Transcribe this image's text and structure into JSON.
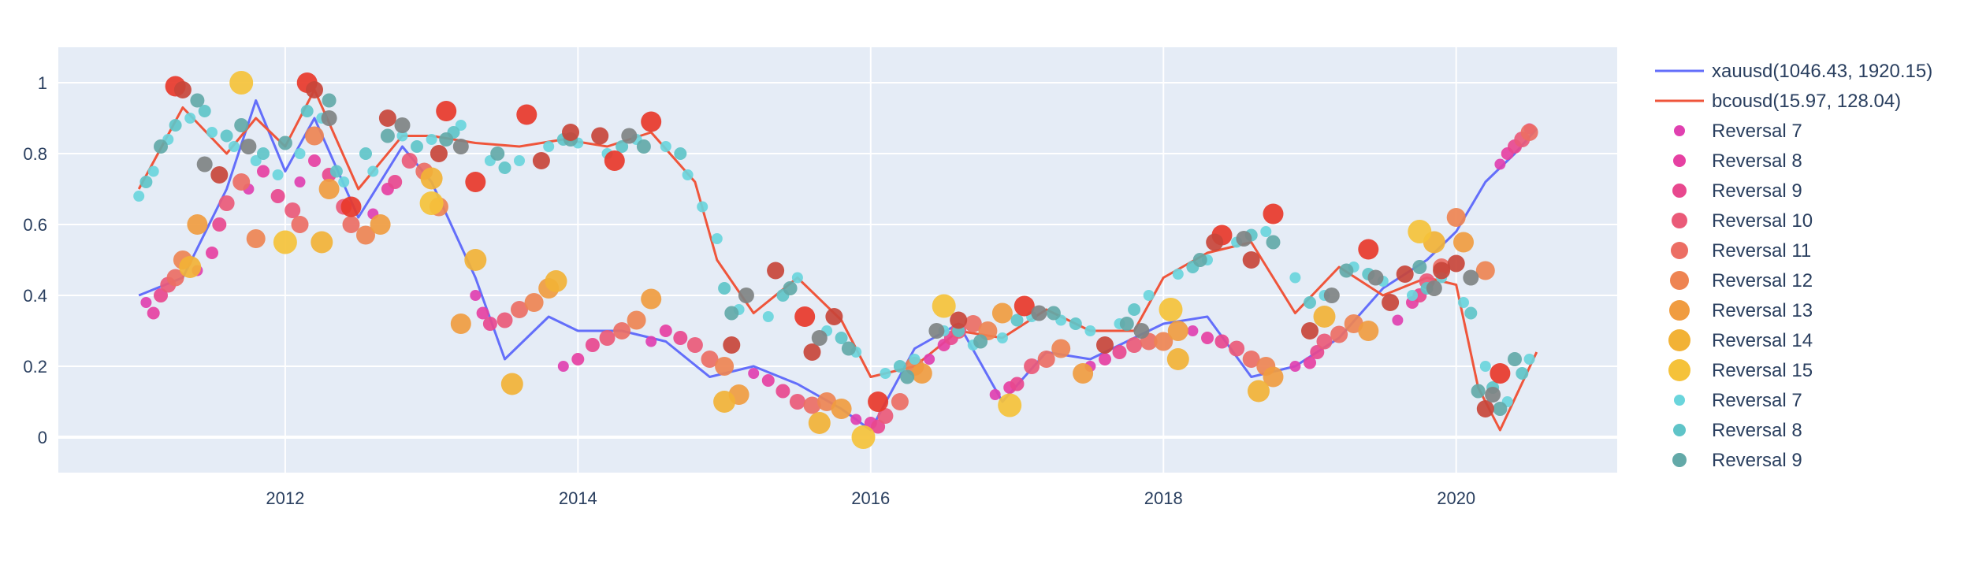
{
  "chart_data": {
    "type": "scatter",
    "title": "",
    "xlabel": "",
    "ylabel": "",
    "xlim": [
      2010.45,
      2021.1
    ],
    "ylim": [
      -0.1,
      1.1
    ],
    "grid": true,
    "legend_position": "right",
    "colors": {
      "plot_bg": "#e5ecf6",
      "grid": "#ffffff",
      "text": "#2a3f5f",
      "xauusd": "#636efa",
      "bcousd": "#ef553b"
    },
    "xticks": [
      {
        "value": 2012,
        "label": "2012"
      },
      {
        "value": 2014,
        "label": "2014"
      },
      {
        "value": 2016,
        "label": "2016"
      },
      {
        "value": 2018,
        "label": "2018"
      },
      {
        "value": 2020,
        "label": "2020"
      }
    ],
    "yticks": [
      {
        "value": 0,
        "label": "0"
      },
      {
        "value": 0.2,
        "label": "0.2"
      },
      {
        "value": 0.4,
        "label": "0.4"
      },
      {
        "value": 0.6,
        "label": "0.6"
      },
      {
        "value": 0.8,
        "label": "0.8"
      },
      {
        "value": 1,
        "label": "1"
      }
    ],
    "series": [
      {
        "name": "xauusd(1046.43, 1920.15)",
        "kind": "line",
        "color": "#636efa",
        "x": [
          2011.0,
          2011.3,
          2011.6,
          2011.8,
          2012.0,
          2012.2,
          2012.5,
          2012.8,
          2013.0,
          2013.3,
          2013.5,
          2013.8,
          2014.0,
          2014.3,
          2014.6,
          2014.9,
          2015.2,
          2015.5,
          2015.8,
          2016.0,
          2016.3,
          2016.6,
          2016.9,
          2017.2,
          2017.5,
          2017.8,
          2018.0,
          2018.3,
          2018.6,
          2018.9,
          2019.2,
          2019.5,
          2019.8,
          2020.0,
          2020.2,
          2020.4,
          2020.55
        ],
        "values": [
          0.4,
          0.45,
          0.7,
          0.95,
          0.75,
          0.9,
          0.62,
          0.82,
          0.72,
          0.45,
          0.22,
          0.34,
          0.3,
          0.3,
          0.27,
          0.17,
          0.2,
          0.15,
          0.08,
          0.02,
          0.25,
          0.32,
          0.1,
          0.24,
          0.22,
          0.28,
          0.32,
          0.34,
          0.17,
          0.2,
          0.28,
          0.42,
          0.5,
          0.58,
          0.72,
          0.8,
          0.87
        ]
      },
      {
        "name": "bcousd(15.97, 128.04)",
        "kind": "line",
        "color": "#ef553b",
        "x": [
          2011.0,
          2011.3,
          2011.6,
          2011.8,
          2012.0,
          2012.2,
          2012.5,
          2012.8,
          2013.0,
          2013.3,
          2013.6,
          2013.9,
          2014.2,
          2014.5,
          2014.8,
          2014.95,
          2015.2,
          2015.5,
          2015.8,
          2016.0,
          2016.3,
          2016.6,
          2016.9,
          2017.2,
          2017.5,
          2017.8,
          2018.0,
          2018.3,
          2018.6,
          2018.9,
          2019.2,
          2019.5,
          2019.8,
          2020.0,
          2020.15,
          2020.3,
          2020.55
        ],
        "values": [
          0.7,
          0.93,
          0.8,
          0.9,
          0.82,
          0.98,
          0.7,
          0.85,
          0.85,
          0.83,
          0.82,
          0.84,
          0.82,
          0.86,
          0.72,
          0.5,
          0.35,
          0.45,
          0.33,
          0.17,
          0.2,
          0.3,
          0.28,
          0.36,
          0.3,
          0.3,
          0.45,
          0.52,
          0.55,
          0.35,
          0.48,
          0.4,
          0.45,
          0.43,
          0.14,
          0.02,
          0.24
        ]
      },
      {
        "name": "Reversal 7",
        "color": "#e040b0",
        "size": 7,
        "x": [
          2011.05,
          2011.4,
          2011.75,
          2012.1,
          2012.6,
          2013.3,
          2013.9,
          2014.5,
          2015.2,
          2015.9,
          2016.4,
          2016.85,
          2017.5,
          2018.2,
          2018.9,
          2019.6,
          2020.3,
          2020.5
        ],
        "values": [
          0.38,
          0.47,
          0.7,
          0.72,
          0.63,
          0.4,
          0.2,
          0.27,
          0.18,
          0.05,
          0.22,
          0.12,
          0.2,
          0.3,
          0.2,
          0.33,
          0.77,
          0.87
        ]
      },
      {
        "name": "Reversal 8",
        "color": "#e640a2",
        "size": 8,
        "x": [
          2011.1,
          2011.5,
          2011.85,
          2012.2,
          2012.7,
          2013.35,
          2014.0,
          2014.6,
          2015.3,
          2016.0,
          2016.5,
          2016.95,
          2017.6,
          2018.3,
          2019.0,
          2019.7,
          2020.35
        ],
        "values": [
          0.35,
          0.52,
          0.75,
          0.78,
          0.7,
          0.35,
          0.22,
          0.3,
          0.16,
          0.04,
          0.26,
          0.14,
          0.22,
          0.28,
          0.21,
          0.38,
          0.8
        ]
      },
      {
        "name": "Reversal 9",
        "color": "#e8488e",
        "size": 9,
        "x": [
          2011.15,
          2011.55,
          2011.95,
          2012.3,
          2012.75,
          2013.4,
          2014.1,
          2014.7,
          2015.4,
          2016.05,
          2016.55,
          2017.0,
          2017.7,
          2018.4,
          2019.05,
          2019.75,
          2020.4
        ],
        "values": [
          0.4,
          0.6,
          0.68,
          0.74,
          0.72,
          0.32,
          0.26,
          0.28,
          0.13,
          0.03,
          0.28,
          0.15,
          0.24,
          0.27,
          0.24,
          0.4,
          0.82
        ]
      },
      {
        "name": "Reversal 10",
        "color": "#ea5a78",
        "size": 10,
        "x": [
          2011.2,
          2011.6,
          2012.05,
          2012.4,
          2012.85,
          2013.5,
          2014.2,
          2014.8,
          2015.5,
          2016.1,
          2016.6,
          2017.1,
          2017.8,
          2018.5,
          2019.1,
          2019.8,
          2020.45
        ],
        "values": [
          0.43,
          0.66,
          0.64,
          0.65,
          0.78,
          0.33,
          0.28,
          0.26,
          0.1,
          0.06,
          0.3,
          0.2,
          0.26,
          0.25,
          0.27,
          0.44,
          0.84
        ]
      },
      {
        "name": "Reversal 11",
        "color": "#ec6e64",
        "size": 11,
        "x": [
          2011.25,
          2011.7,
          2012.1,
          2012.45,
          2012.95,
          2013.6,
          2014.3,
          2014.9,
          2015.6,
          2016.2,
          2016.7,
          2017.2,
          2017.9,
          2018.6,
          2019.2,
          2019.9,
          2020.5
        ],
        "values": [
          0.45,
          0.72,
          0.6,
          0.6,
          0.75,
          0.36,
          0.3,
          0.22,
          0.09,
          0.1,
          0.32,
          0.22,
          0.27,
          0.22,
          0.29,
          0.48,
          0.86
        ]
      },
      {
        "name": "Reversal 12",
        "color": "#ee8452",
        "size": 12,
        "x": [
          2011.3,
          2011.8,
          2012.2,
          2012.55,
          2013.05,
          2013.7,
          2014.4,
          2015.0,
          2015.7,
          2016.3,
          2016.8,
          2017.3,
          2018.0,
          2018.7,
          2019.3,
          2020.0,
          2020.2
        ],
        "values": [
          0.5,
          0.56,
          0.85,
          0.57,
          0.65,
          0.38,
          0.33,
          0.2,
          0.1,
          0.2,
          0.3,
          0.25,
          0.27,
          0.2,
          0.32,
          0.62,
          0.47
        ]
      },
      {
        "name": "Reversal 13",
        "color": "#f09c40",
        "size": 13,
        "x": [
          2011.4,
          2012.3,
          2012.65,
          2013.2,
          2013.8,
          2014.5,
          2015.1,
          2015.8,
          2016.35,
          2016.9,
          2017.45,
          2018.1,
          2018.75,
          2019.4,
          2020.05
        ],
        "values": [
          0.6,
          0.7,
          0.6,
          0.32,
          0.42,
          0.39,
          0.12,
          0.08,
          0.18,
          0.35,
          0.18,
          0.3,
          0.17,
          0.3,
          0.55
        ]
      },
      {
        "name": "Reversal 14",
        "color": "#f2b236",
        "size": 14,
        "x": [
          2011.35,
          2012.25,
          2013.0,
          2013.3,
          2013.55,
          2013.85,
          2015.0,
          2015.65,
          2018.1,
          2018.65,
          2019.1,
          2019.85
        ],
        "values": [
          0.48,
          0.55,
          0.73,
          0.5,
          0.15,
          0.44,
          0.1,
          0.04,
          0.22,
          0.13,
          0.34,
          0.55
        ]
      },
      {
        "name": "Reversal 15",
        "color": "#f5c23a",
        "size": 15,
        "x": [
          2011.7,
          2012.0,
          2013.0,
          2015.95,
          2016.5,
          2016.95,
          2018.05,
          2019.75
        ],
        "values": [
          1.0,
          0.55,
          0.66,
          0.0,
          0.37,
          0.09,
          0.36,
          0.58
        ]
      },
      {
        "name": "Reversal 7",
        "color": "#6ad5dc",
        "size": 7,
        "x": [
          2011.0,
          2011.1,
          2011.2,
          2011.35,
          2011.5,
          2011.65,
          2011.8,
          2011.95,
          2012.1,
          2012.25,
          2012.4,
          2012.6,
          2012.8,
          2013.0,
          2013.2,
          2013.4,
          2013.6,
          2013.8,
          2014.0,
          2014.2,
          2014.4,
          2014.6,
          2014.75,
          2014.85,
          2014.95,
          2015.1,
          2015.3,
          2015.5,
          2015.7,
          2015.9,
          2016.1,
          2016.3,
          2016.5,
          2016.7,
          2016.9,
          2017.1,
          2017.3,
          2017.5,
          2017.7,
          2017.9,
          2018.1,
          2018.3,
          2018.5,
          2018.7,
          2018.9,
          2019.1,
          2019.3,
          2019.5,
          2019.7,
          2019.9,
          2020.05,
          2020.2,
          2020.35,
          2020.5
        ],
        "values": [
          0.68,
          0.75,
          0.84,
          0.9,
          0.86,
          0.82,
          0.78,
          0.74,
          0.8,
          0.9,
          0.72,
          0.75,
          0.85,
          0.84,
          0.88,
          0.78,
          0.78,
          0.82,
          0.83,
          0.8,
          0.84,
          0.82,
          0.74,
          0.65,
          0.56,
          0.36,
          0.34,
          0.45,
          0.3,
          0.24,
          0.18,
          0.22,
          0.3,
          0.26,
          0.28,
          0.34,
          0.33,
          0.3,
          0.32,
          0.4,
          0.46,
          0.5,
          0.55,
          0.58,
          0.45,
          0.4,
          0.48,
          0.44,
          0.4,
          0.45,
          0.38,
          0.2,
          0.1,
          0.22
        ]
      },
      {
        "name": "Reversal 8",
        "color": "#5fc4c8",
        "size": 8,
        "x": [
          2011.05,
          2011.25,
          2011.45,
          2011.6,
          2011.85,
          2012.15,
          2012.35,
          2012.55,
          2012.9,
          2013.15,
          2013.5,
          2013.9,
          2014.3,
          2014.7,
          2015.0,
          2015.4,
          2015.8,
          2016.2,
          2016.6,
          2017.0,
          2017.4,
          2017.8,
          2018.2,
          2018.6,
          2019.0,
          2019.4,
          2019.8,
          2020.1,
          2020.25,
          2020.45
        ],
        "values": [
          0.72,
          0.88,
          0.92,
          0.85,
          0.8,
          0.92,
          0.75,
          0.8,
          0.82,
          0.86,
          0.76,
          0.84,
          0.82,
          0.8,
          0.42,
          0.4,
          0.28,
          0.2,
          0.3,
          0.33,
          0.32,
          0.36,
          0.48,
          0.57,
          0.38,
          0.46,
          0.42,
          0.35,
          0.14,
          0.18
        ]
      },
      {
        "name": "Reversal 9",
        "color": "#63a9a8",
        "size": 9,
        "x": [
          2011.15,
          2011.4,
          2011.7,
          2012.0,
          2012.3,
          2012.7,
          2013.1,
          2013.45,
          2013.95,
          2014.45,
          2015.05,
          2015.45,
          2015.85,
          2016.25,
          2016.75,
          2017.25,
          2017.75,
          2018.25,
          2018.75,
          2019.25,
          2019.75,
          2020.15,
          2020.3,
          2020.4
        ],
        "values": [
          0.82,
          0.95,
          0.88,
          0.83,
          0.95,
          0.85,
          0.84,
          0.8,
          0.84,
          0.82,
          0.35,
          0.42,
          0.25,
          0.17,
          0.27,
          0.35,
          0.32,
          0.5,
          0.55,
          0.47,
          0.48,
          0.13,
          0.08,
          0.22
        ]
      },
      {
        "name": "",
        "color": "#e8382a",
        "size": 13,
        "x": [
          2011.25,
          2012.15,
          2012.45,
          2013.1,
          2013.3,
          2013.65,
          2014.25,
          2014.5,
          2015.55,
          2016.05,
          2017.05,
          2018.4,
          2018.75,
          2019.4,
          2020.3
        ],
        "values": [
          0.99,
          1.0,
          0.65,
          0.92,
          0.72,
          0.91,
          0.78,
          0.89,
          0.34,
          0.1,
          0.37,
          0.57,
          0.63,
          0.53,
          0.18
        ]
      },
      {
        "name": "",
        "color": "#c8453a",
        "size": 11,
        "x": [
          2011.3,
          2011.55,
          2012.2,
          2012.7,
          2013.05,
          2013.75,
          2013.95,
          2014.15,
          2015.05,
          2015.35,
          2015.6,
          2015.75,
          2016.6,
          2017.6,
          2018.35,
          2018.6,
          2019.0,
          2019.55,
          2019.65,
          2019.9,
          2020.0,
          2020.2
        ],
        "values": [
          0.98,
          0.74,
          0.98,
          0.9,
          0.8,
          0.78,
          0.86,
          0.85,
          0.26,
          0.47,
          0.24,
          0.34,
          0.33,
          0.26,
          0.55,
          0.5,
          0.3,
          0.38,
          0.46,
          0.47,
          0.49,
          0.08
        ]
      },
      {
        "name": "",
        "color": "#7f8383",
        "size": 10,
        "x": [
          2011.45,
          2011.75,
          2012.3,
          2012.8,
          2013.2,
          2014.35,
          2015.15,
          2015.65,
          2016.45,
          2017.15,
          2017.85,
          2018.55,
          2019.15,
          2019.45,
          2019.85,
          2020.1,
          2020.25
        ],
        "values": [
          0.77,
          0.82,
          0.9,
          0.88,
          0.82,
          0.85,
          0.4,
          0.28,
          0.3,
          0.35,
          0.3,
          0.56,
          0.4,
          0.45,
          0.42,
          0.45,
          0.12
        ]
      }
    ]
  }
}
